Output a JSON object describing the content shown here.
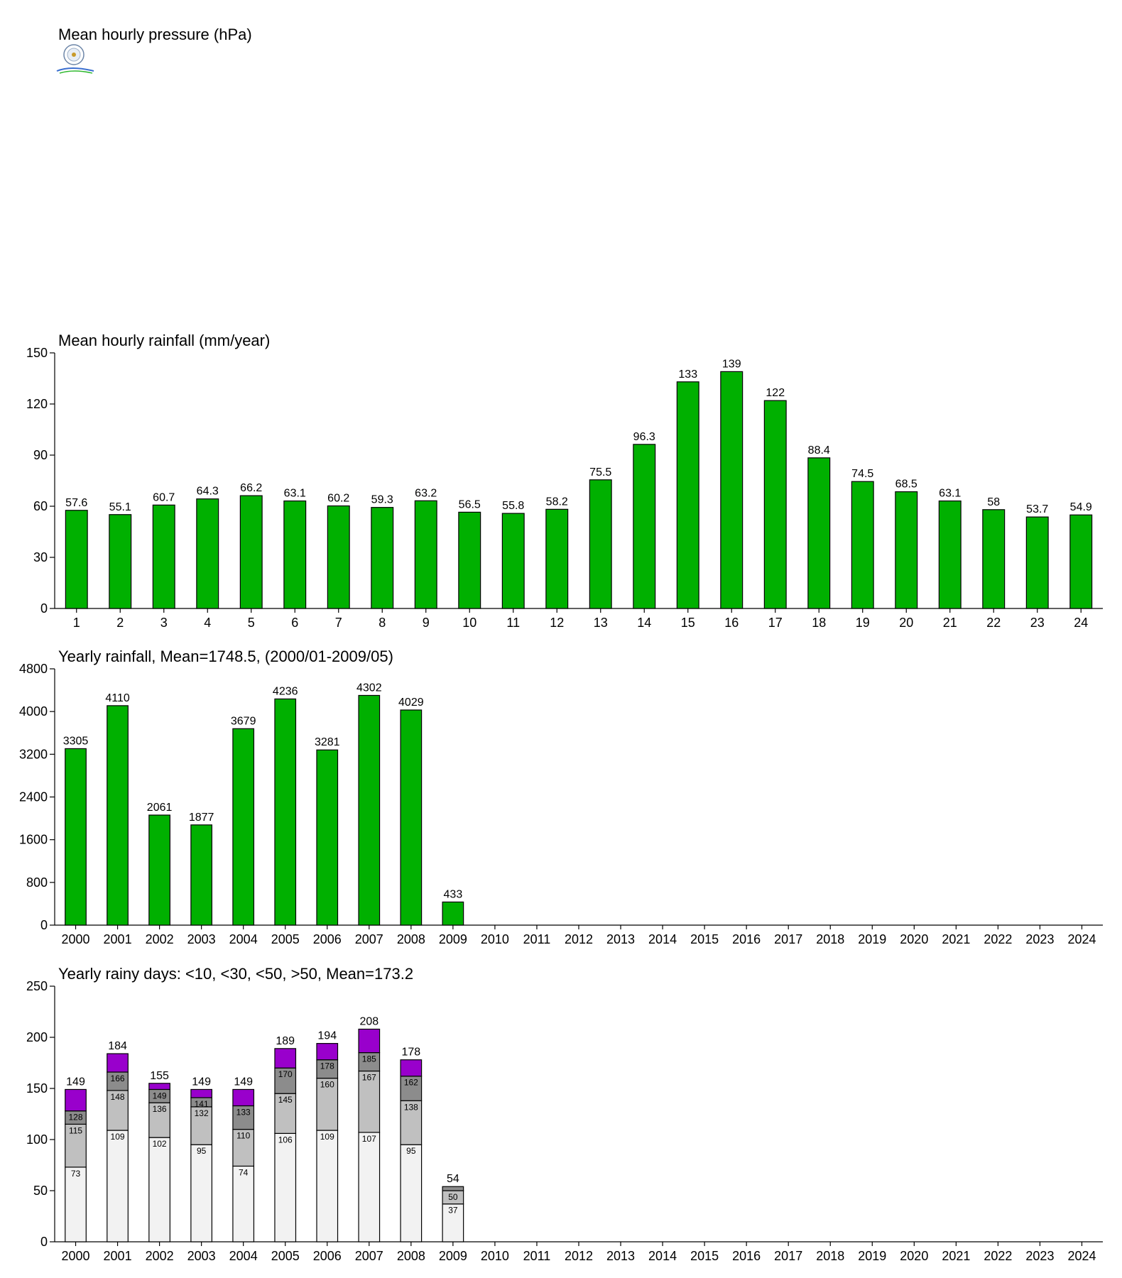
{
  "pressure_title": "Mean hourly pressure (hPa)",
  "colors": {
    "green": "#00b000",
    "purple": "#9900cc",
    "gray_dark": "#8c8c8c",
    "gray_mid": "#c0c0c0",
    "gray_light": "#f2f2f2"
  },
  "chart_data": [
    {
      "type": "bar",
      "title": "Mean hourly rainfall (mm/year)",
      "categories": [
        "1",
        "2",
        "3",
        "4",
        "5",
        "6",
        "7",
        "8",
        "9",
        "10",
        "11",
        "12",
        "13",
        "14",
        "15",
        "16",
        "17",
        "18",
        "19",
        "20",
        "21",
        "22",
        "23",
        "24"
      ],
      "values": [
        57.6,
        55.1,
        60.7,
        64.3,
        66.2,
        63.1,
        60.2,
        59.3,
        63.2,
        56.5,
        55.8,
        58.2,
        75.5,
        96.3,
        133,
        139,
        122,
        88.4,
        74.5,
        68.5,
        63.1,
        58,
        53.7,
        54.9
      ],
      "labels": [
        "57.6",
        "55.1",
        "60.7",
        "64.3",
        "66.2",
        "63.1",
        "60.2",
        "59.3",
        "63.2",
        "56.5",
        "55.8",
        "58.2",
        "75.5",
        "96.3",
        "133",
        "139",
        "122",
        "88.4",
        "74.5",
        "68.5",
        "63.1",
        "58",
        "53.7",
        "54.9"
      ],
      "ylim": [
        0,
        150
      ],
      "yticks": [
        "0",
        "30",
        "60",
        "90",
        "120",
        "150"
      ],
      "color": "#00b000"
    },
    {
      "type": "bar",
      "title": "Yearly rainfall, Mean=1748.5, (2000/01-2009/05)",
      "categories": [
        "2000",
        "2001",
        "2002",
        "2003",
        "2004",
        "2005",
        "2006",
        "2007",
        "2008",
        "2009",
        "2010",
        "2011",
        "2012",
        "2013",
        "2014",
        "2015",
        "2016",
        "2017",
        "2018",
        "2019",
        "2020",
        "2021",
        "2022",
        "2023",
        "2024"
      ],
      "values": [
        3305,
        4110,
        2061,
        1877,
        3679,
        4236,
        3281,
        4302,
        4029,
        433,
        null,
        null,
        null,
        null,
        null,
        null,
        null,
        null,
        null,
        null,
        null,
        null,
        null,
        null,
        null
      ],
      "labels": [
        "3305",
        "4110",
        "2061",
        "1877",
        "3679",
        "4236",
        "3281",
        "4302",
        "4029",
        "433",
        "",
        "",
        "",
        "",
        "",
        "",
        "",
        "",
        "",
        "",
        "",
        "",
        "",
        "",
        ""
      ],
      "ylim": [
        0,
        4800
      ],
      "yticks": [
        "0",
        "800",
        "1600",
        "2400",
        "3200",
        "4000",
        "4800"
      ],
      "color": "#00b000"
    },
    {
      "type": "stacked-bar",
      "title": "Yearly rainy days: <10, <30, <50, >50, Mean=173.2",
      "categories": [
        "2000",
        "2001",
        "2002",
        "2003",
        "2004",
        "2005",
        "2006",
        "2007",
        "2008",
        "2009",
        "2010",
        "2011",
        "2012",
        "2013",
        "2014",
        "2015",
        "2016",
        "2017",
        "2018",
        "2019",
        "2020",
        "2021",
        "2022",
        "2023",
        "2024"
      ],
      "cumulative": [
        [
          73,
          115,
          128,
          149
        ],
        [
          109,
          148,
          166,
          184
        ],
        [
          102,
          136,
          149,
          155
        ],
        [
          95,
          132,
          141,
          149
        ],
        [
          74,
          110,
          133,
          149
        ],
        [
          106,
          145,
          170,
          189
        ],
        [
          109,
          160,
          178,
          194
        ],
        [
          107,
          167,
          185,
          208
        ],
        [
          95,
          138,
          162,
          178
        ],
        [
          37,
          50,
          54,
          54
        ]
      ],
      "segment_labels": [
        [
          "73",
          "115",
          "128"
        ],
        [
          "109",
          "148",
          "166"
        ],
        [
          "102",
          "136",
          "149"
        ],
        [
          "95",
          "132",
          "141"
        ],
        [
          "74",
          "110",
          "133"
        ],
        [
          "106",
          "145",
          "170"
        ],
        [
          "109",
          "160",
          "178"
        ],
        [
          "107",
          "167",
          "185"
        ],
        [
          "95",
          "138",
          "162"
        ],
        [
          "37",
          "50",
          ""
        ]
      ],
      "totals": [
        "149",
        "184",
        "155",
        "149",
        "149",
        "189",
        "194",
        "208",
        "178",
        "54"
      ],
      "ylim": [
        0,
        250
      ],
      "yticks": [
        "0",
        "50",
        "100",
        "150",
        "200",
        "250"
      ]
    }
  ]
}
